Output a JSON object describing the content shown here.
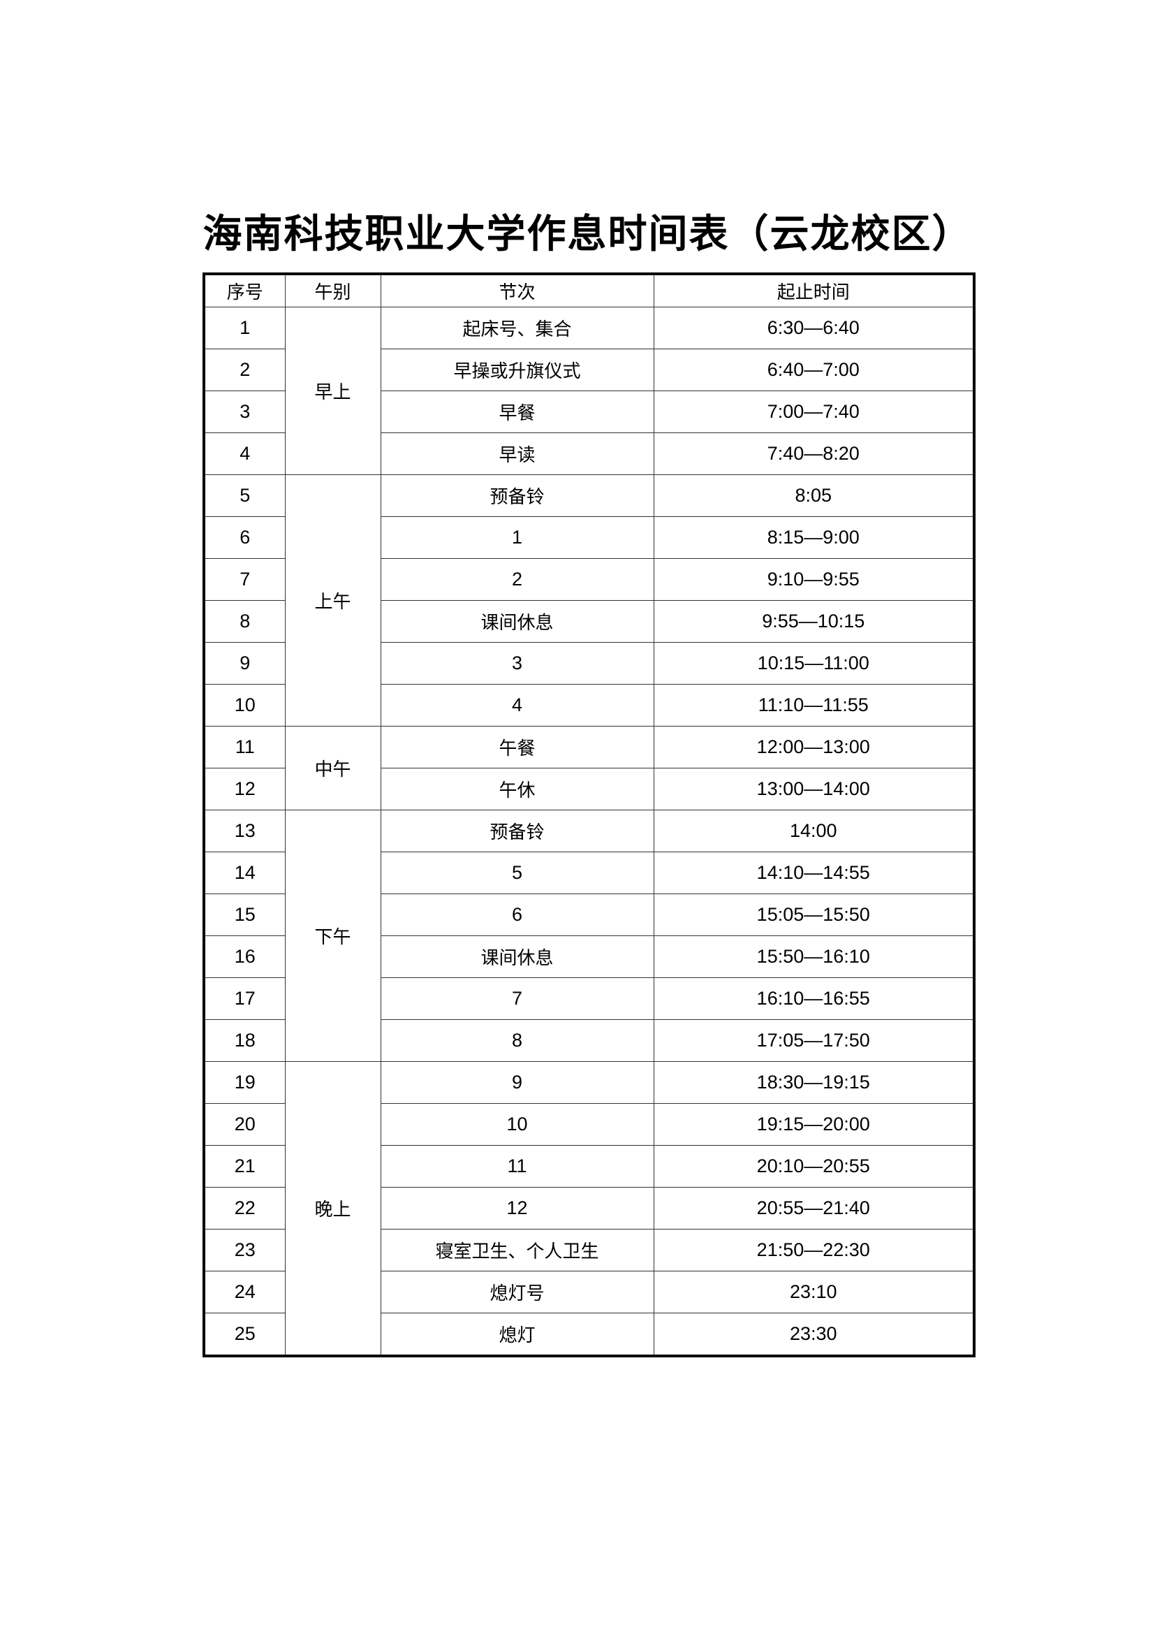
{
  "title": "海南科技职业大学作息时间表（云龙校区）",
  "headers": [
    "序号",
    "午别",
    "节次",
    "起止时间"
  ],
  "groups": [
    {
      "label": "早上",
      "rows": [
        {
          "no": "1",
          "item": "起床号、集合",
          "time": "6:30—6:40"
        },
        {
          "no": "2",
          "item": "早操或升旗仪式",
          "time": "6:40—7:00"
        },
        {
          "no": "3",
          "item": "早餐",
          "time": "7:00—7:40"
        },
        {
          "no": "4",
          "item": "早读",
          "time": "7:40—8:20"
        }
      ]
    },
    {
      "label": "上午",
      "rows": [
        {
          "no": "5",
          "item": "预备铃",
          "time": "8:05"
        },
        {
          "no": "6",
          "item": "1",
          "time": "8:15—9:00"
        },
        {
          "no": "7",
          "item": "2",
          "time": "9:10—9:55"
        },
        {
          "no": "8",
          "item": "课间休息",
          "time": "9:55—10:15"
        },
        {
          "no": "9",
          "item": "3",
          "time": "10:15—11:00"
        },
        {
          "no": "10",
          "item": "4",
          "time": "11:10—11:55"
        }
      ]
    },
    {
      "label": "中午",
      "rows": [
        {
          "no": "11",
          "item": "午餐",
          "time": "12:00—13:00"
        },
        {
          "no": "12",
          "item": "午休",
          "time": "13:00—14:00"
        }
      ]
    },
    {
      "label": "下午",
      "rows": [
        {
          "no": "13",
          "item": "预备铃",
          "time": "14:00"
        },
        {
          "no": "14",
          "item": "5",
          "time": "14:10—14:55"
        },
        {
          "no": "15",
          "item": "6",
          "time": "15:05—15:50"
        },
        {
          "no": "16",
          "item": "课间休息",
          "time": "15:50—16:10"
        },
        {
          "no": "17",
          "item": "7",
          "time": "16:10—16:55"
        },
        {
          "no": "18",
          "item": "8",
          "time": "17:05—17:50"
        }
      ]
    },
    {
      "label": "晚上",
      "rows": [
        {
          "no": "19",
          "item": "9",
          "time": "18:30—19:15"
        },
        {
          "no": "20",
          "item": "10",
          "time": "19:15—20:00"
        },
        {
          "no": "21",
          "item": "11",
          "time": "20:10—20:55"
        },
        {
          "no": "22",
          "item": "12",
          "time": "20:55—21:40"
        },
        {
          "no": "23",
          "item": "寝室卫生、个人卫生",
          "time": "21:50—22:30"
        },
        {
          "no": "24",
          "item": "熄灯号",
          "time": "23:10"
        },
        {
          "no": "25",
          "item": "熄灯",
          "time": "23:30"
        }
      ]
    }
  ]
}
